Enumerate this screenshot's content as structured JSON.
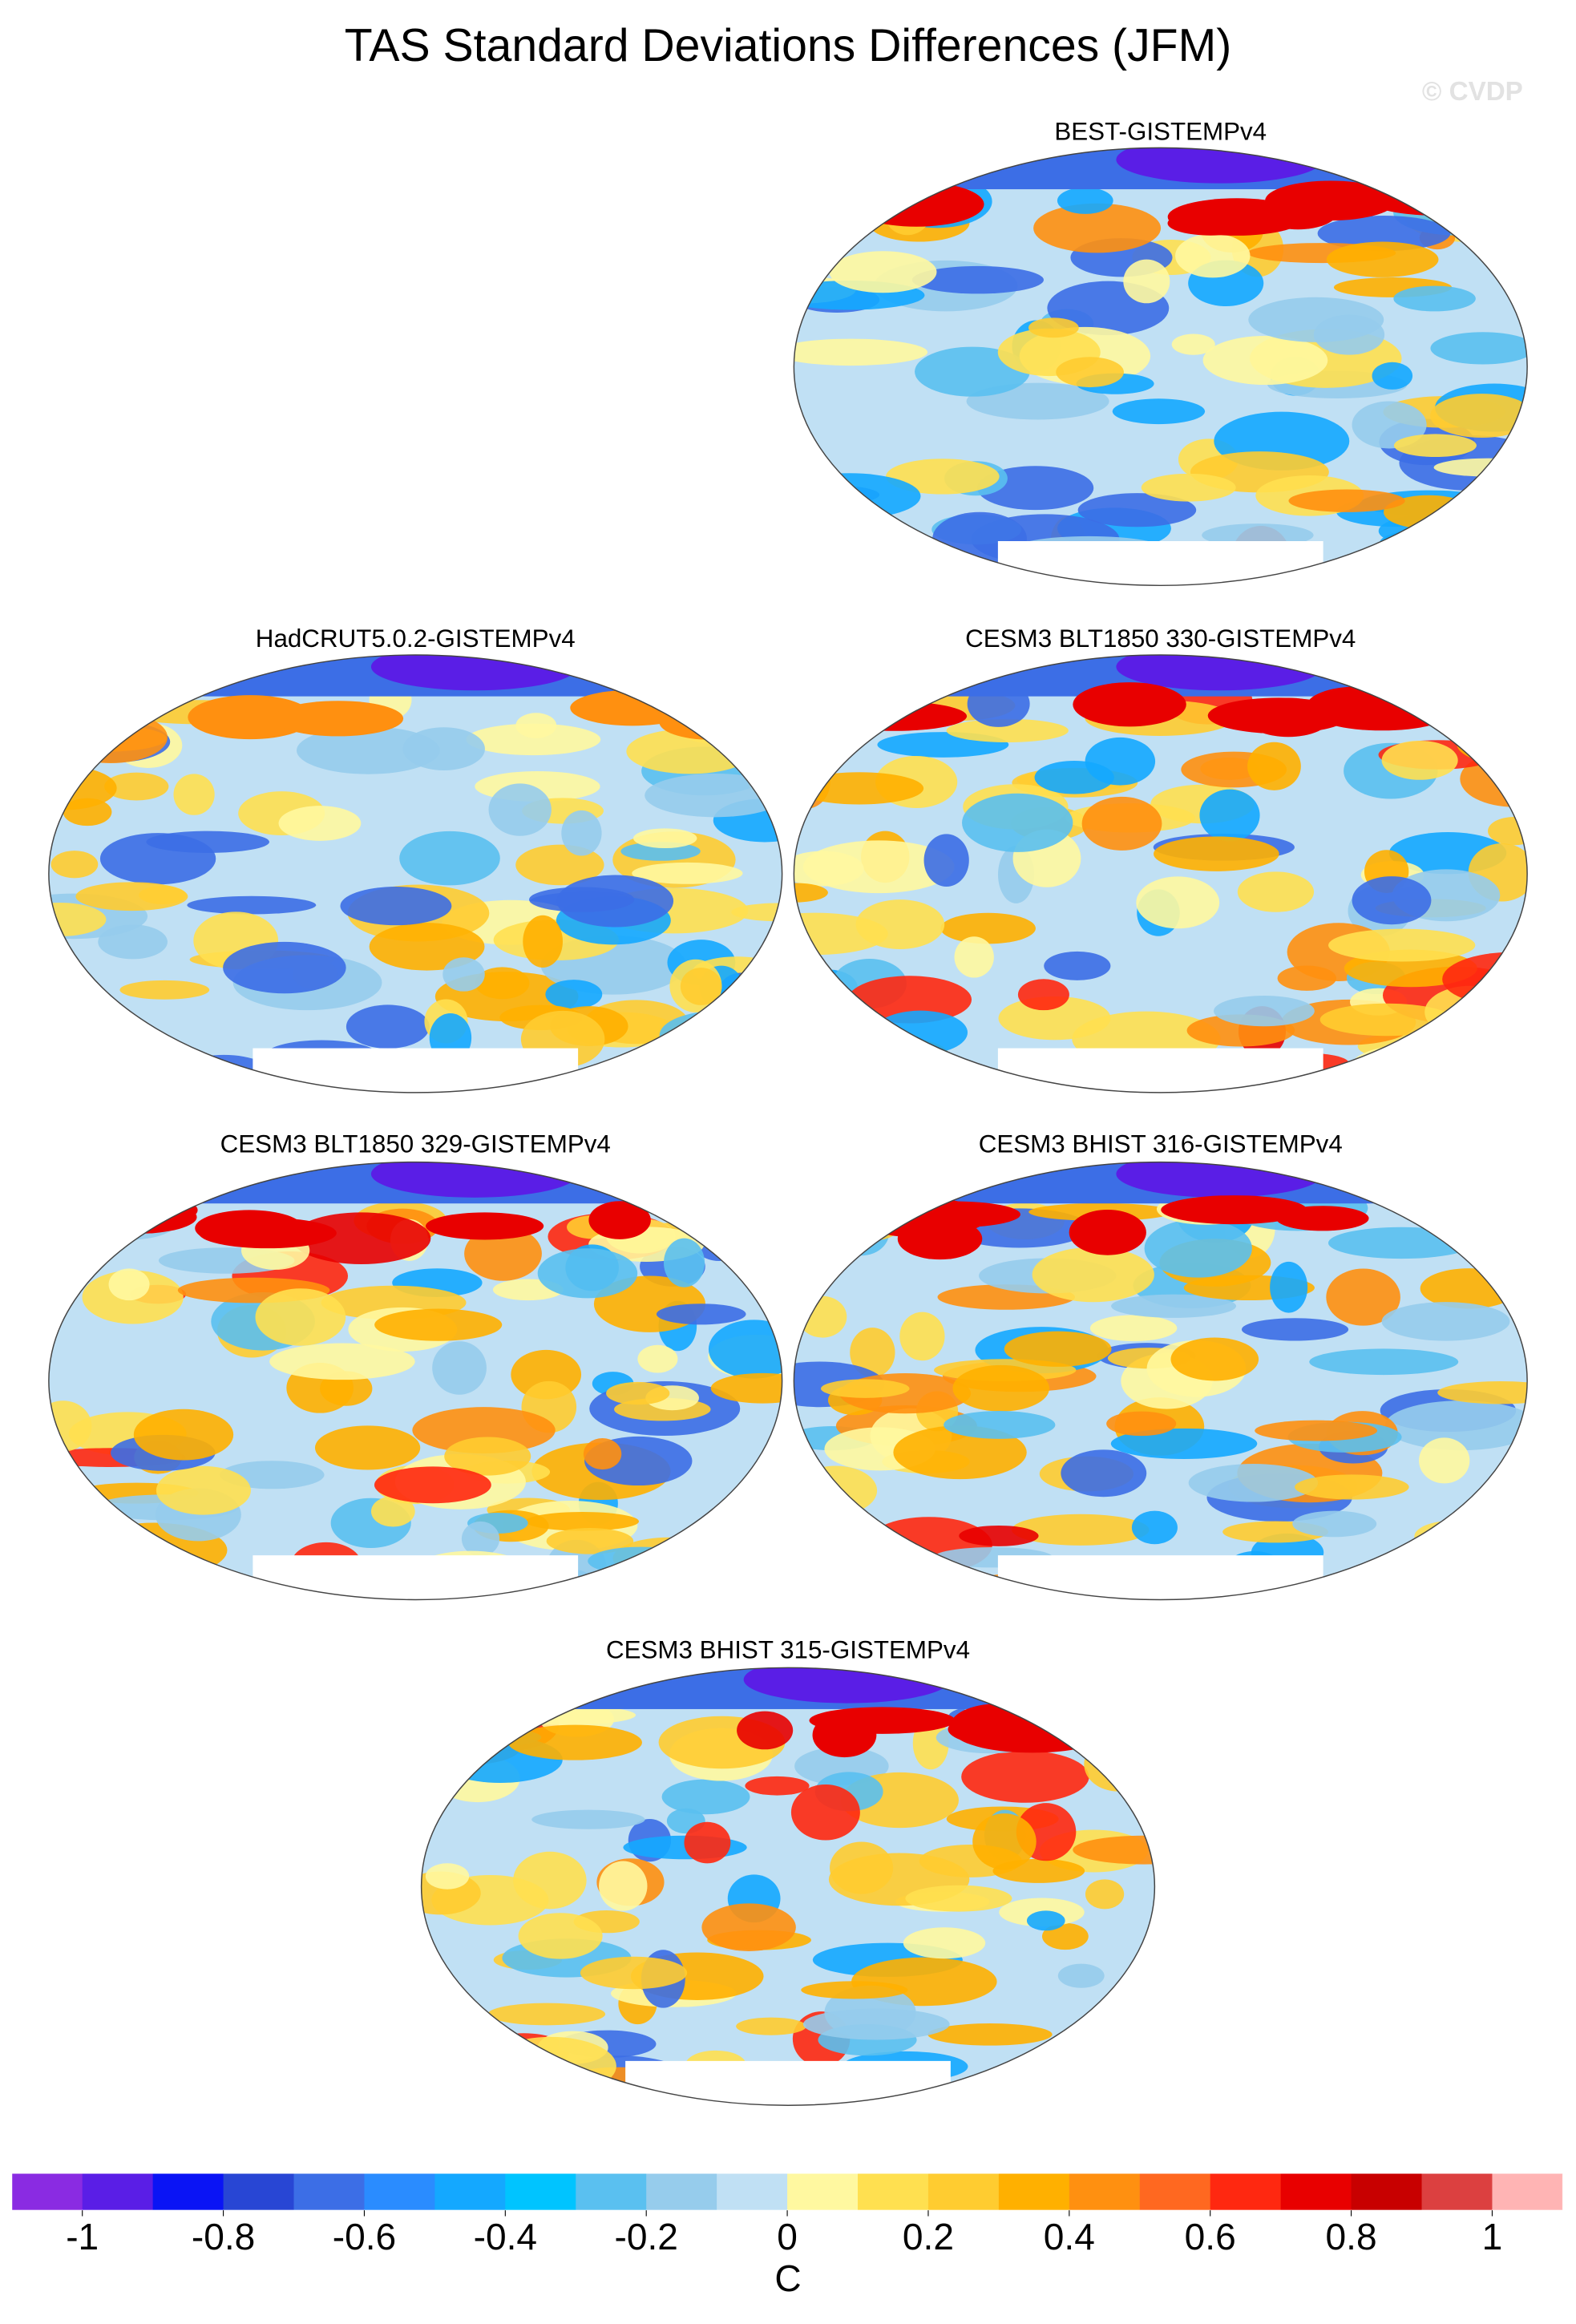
{
  "title": "TAS Standard Deviations Differences (JFM)",
  "watermark": "© CVDP",
  "panels": [
    {
      "title": "BEST-GISTEMPv4"
    },
    {
      "title": "HadCRUT5.0.2-GISTEMPv4"
    },
    {
      "title": "CESM3 BLT1850 330-GISTEMPv4"
    },
    {
      "title": "CESM3 BLT1850 329-GISTEMPv4"
    },
    {
      "title": "CESM3 BHIST 316-GISTEMPv4"
    },
    {
      "title": "CESM3 BHIST 315-GISTEMPv4"
    }
  ],
  "colorbar": {
    "colors": [
      "#8a2be2",
      "#5a1ee6",
      "#0a14f5",
      "#2846d4",
      "#3c6ee6",
      "#2a8cff",
      "#14a8ff",
      "#00c4ff",
      "#5ac0f0",
      "#96ccec",
      "#c0e0f4",
      "#fff8a0",
      "#ffe050",
      "#ffcc30",
      "#ffb000",
      "#ff9010",
      "#ff6820",
      "#ff2810",
      "#e80000",
      "#c80000",
      "#dc4040",
      "#ffb4b4"
    ],
    "clim": [
      -1.1,
      1.1
    ],
    "ticks": [
      -1,
      -0.8,
      -0.6,
      -0.4,
      -0.2,
      0,
      0.2,
      0.4,
      0.6,
      0.8,
      1
    ],
    "label": "C"
  }
}
